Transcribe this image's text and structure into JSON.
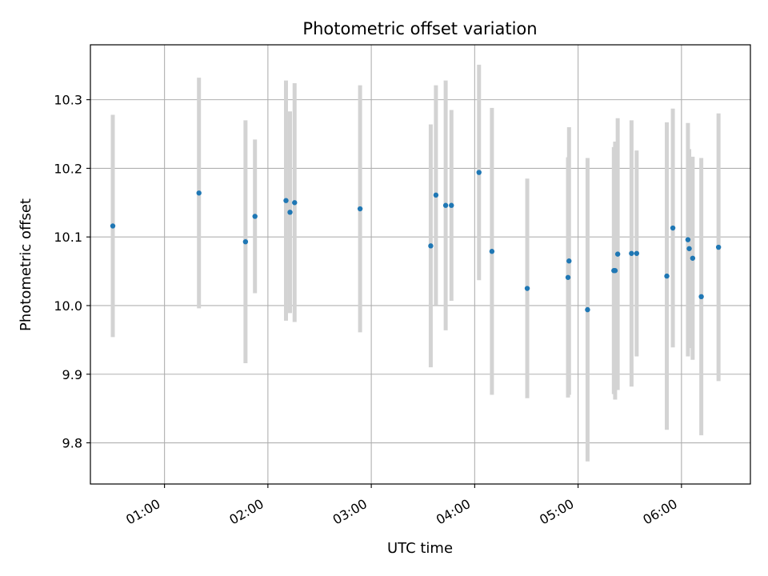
{
  "chart_data": {
    "type": "scatter",
    "title": "Photometric offset variation",
    "xlabel": "UTC time",
    "ylabel": "Photometric offset",
    "grid": true,
    "legend": "none",
    "xlim": [
      "00:17:00",
      "06:40:00"
    ],
    "ylim": [
      9.74,
      10.38
    ],
    "x_ticks": [
      "01:00",
      "02:00",
      "03:00",
      "04:00",
      "05:00",
      "06:00"
    ],
    "y_ticks": [
      "9.8",
      "9.9",
      "10.0",
      "10.1",
      "10.2",
      "10.3"
    ],
    "colors": {
      "point": "#1f77b4",
      "errorbar": "#d3d3d3",
      "grid": "#b0b0b0"
    },
    "series": [
      {
        "points": [
          {
            "x": "00:30:00",
            "y": 10.116,
            "err": 0.162
          },
          {
            "x": "01:20:00",
            "y": 10.164,
            "err": 0.168
          },
          {
            "x": "01:47:00",
            "y": 10.093,
            "err": 0.177
          },
          {
            "x": "01:52:30",
            "y": 10.13,
            "err": 0.112
          },
          {
            "x": "02:10:30",
            "y": 10.153,
            "err": 0.175
          },
          {
            "x": "02:12:50",
            "y": 10.136,
            "err": 0.147
          },
          {
            "x": "02:15:30",
            "y": 10.15,
            "err": 0.174
          },
          {
            "x": "02:53:30",
            "y": 10.141,
            "err": 0.18
          },
          {
            "x": "03:34:30",
            "y": 10.087,
            "err": 0.177
          },
          {
            "x": "03:37:30",
            "y": 10.161,
            "err": 0.16
          },
          {
            "x": "03:43:10",
            "y": 10.146,
            "err": 0.182
          },
          {
            "x": "03:46:30",
            "y": 10.146,
            "err": 0.139
          },
          {
            "x": "04:02:30",
            "y": 10.194,
            "err": 0.157
          },
          {
            "x": "04:10:00",
            "y": 10.079,
            "err": 0.209
          },
          {
            "x": "04:30:30",
            "y": 10.025,
            "err": 0.16
          },
          {
            "x": "04:54:10",
            "y": 10.041,
            "err": 0.175
          },
          {
            "x": "04:54:45",
            "y": 10.065,
            "err": 0.195
          },
          {
            "x": "05:05:30",
            "y": 9.994,
            "err": 0.221
          },
          {
            "x": "05:20:45",
            "y": 10.051,
            "err": 0.18
          },
          {
            "x": "05:21:30",
            "y": 10.051,
            "err": 0.188
          },
          {
            "x": "05:23:00",
            "y": 10.075,
            "err": 0.198
          },
          {
            "x": "05:31:00",
            "y": 10.076,
            "err": 0.194
          },
          {
            "x": "05:34:00",
            "y": 10.076,
            "err": 0.15
          },
          {
            "x": "05:51:30",
            "y": 10.043,
            "err": 0.224
          },
          {
            "x": "05:55:00",
            "y": 10.113,
            "err": 0.174
          },
          {
            "x": "06:03:45",
            "y": 10.096,
            "err": 0.17
          },
          {
            "x": "06:04:30",
            "y": 10.083,
            "err": 0.145
          },
          {
            "x": "06:06:30",
            "y": 10.069,
            "err": 0.148
          },
          {
            "x": "06:11:30",
            "y": 10.013,
            "err": 0.202
          },
          {
            "x": "06:21:30",
            "y": 10.085,
            "err": 0.195
          }
        ]
      }
    ]
  }
}
